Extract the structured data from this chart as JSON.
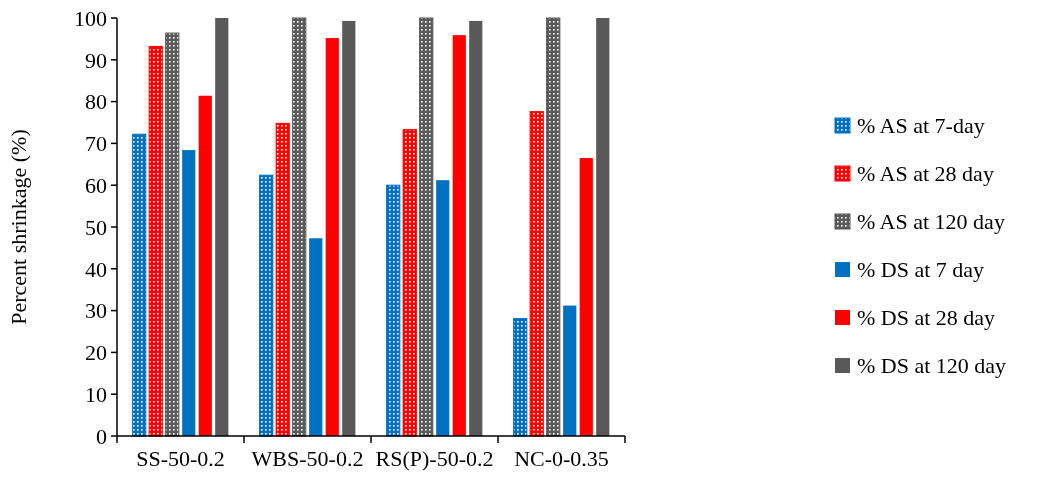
{
  "chart_data": {
    "type": "bar",
    "ylabel": "Percent shrinkage (%)",
    "categories": [
      "SS-50-0.2",
      "WBS-50-0.2",
      "RS(P)-50-0.2",
      "NC-0-0.35"
    ],
    "series": [
      {
        "name": "% AS at 7-day",
        "color": "#0070c0",
        "values": [
          72.2,
          62.4,
          60.0,
          28.1
        ]
      },
      {
        "name": "% AS at 28 day",
        "color": "#ff0000",
        "values": [
          93.2,
          74.8,
          73.3,
          77.6
        ]
      },
      {
        "name": "% AS at 120 day",
        "color": "#595959",
        "values": [
          96.4,
          100,
          100,
          100
        ]
      },
      {
        "name": "% DS at 7 day",
        "color": "#0070c0",
        "values": [
          68.4,
          47.3,
          61.2,
          31.2
        ]
      },
      {
        "name": "% DS at 28 day",
        "color": "#ff0000",
        "values": [
          81.4,
          95.2,
          95.9,
          66.5
        ]
      },
      {
        "name": "% DS at 120 day",
        "color": "#595959",
        "values": [
          100,
          99.3,
          99.3,
          100
        ]
      }
    ],
    "ylim": [
      0,
      100
    ],
    "yticks": [
      0,
      10,
      20,
      30,
      40,
      50,
      60,
      70,
      80,
      90,
      100
    ],
    "grid": false,
    "legend": "right"
  }
}
